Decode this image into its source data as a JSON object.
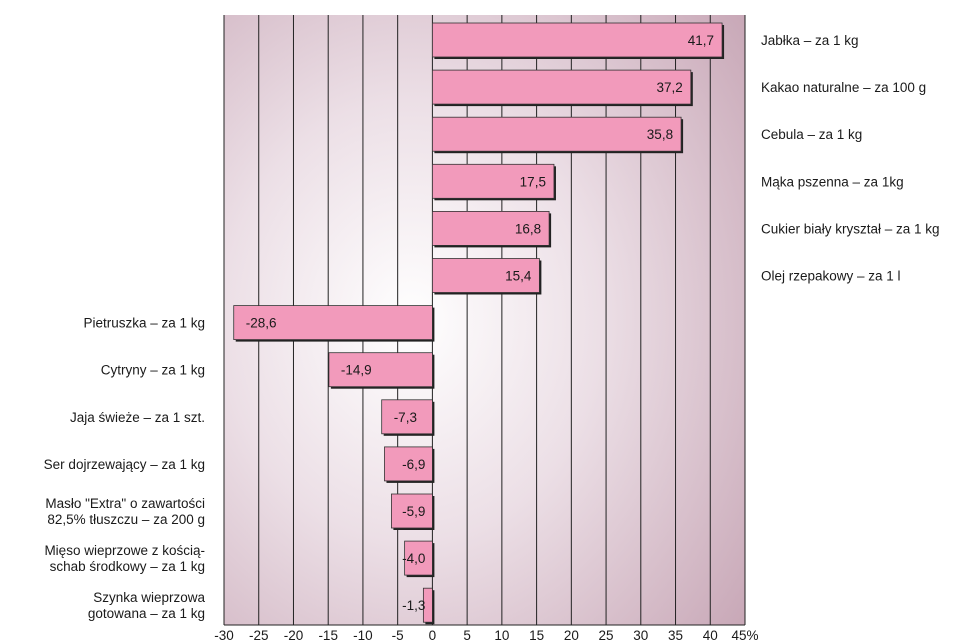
{
  "chart_data": {
    "type": "bar",
    "orientation": "horizontal",
    "categories": [
      [
        "Jabłka – za 1 kg"
      ],
      [
        "Kakao naturalne  – za 100 g"
      ],
      [
        "Cebula – za 1 kg"
      ],
      [
        "Mąka pszenna – za 1kg"
      ],
      [
        "Cukier biały kryształ – za 1 kg"
      ],
      [
        "Olej rzepakowy – za 1 l"
      ],
      [
        "Pietruszka – za 1 kg"
      ],
      [
        "Cytryny – za 1 kg"
      ],
      [
        "Jaja świeże – za 1 szt."
      ],
      [
        "Ser dojrzewający – za 1 kg"
      ],
      [
        "Masło \"Extra\" o zawartości",
        "82,5% tłuszczu – za 200 g"
      ],
      [
        "Mięso wieprzowe z kością-",
        "schab środkowy – za 1 kg"
      ],
      [
        "Szynka wieprzowa",
        "gotowana – za 1 kg"
      ]
    ],
    "values": [
      41.7,
      37.2,
      35.8,
      17.5,
      16.8,
      15.4,
      -28.6,
      -14.9,
      -7.3,
      -6.9,
      -5.9,
      -4.0,
      -1.3
    ],
    "value_labels": [
      "41,7",
      "37,2",
      "35,8",
      "17,5",
      "16,8",
      "15,4",
      "-28,6",
      "-14,9",
      "-7,3",
      "-6,9",
      "-5,9",
      "-4,0",
      "-1,3"
    ],
    "xlim": [
      -30,
      45
    ],
    "x_ticks": [
      "-30",
      "-25",
      "-20",
      "-15",
      "-10",
      "-5",
      "0",
      "5",
      "10",
      "15",
      "20",
      "25",
      "30",
      "35",
      "40",
      "45%"
    ],
    "grid": true,
    "bar_color": "#f29abb",
    "title": "",
    "xlabel": "",
    "ylabel": ""
  }
}
